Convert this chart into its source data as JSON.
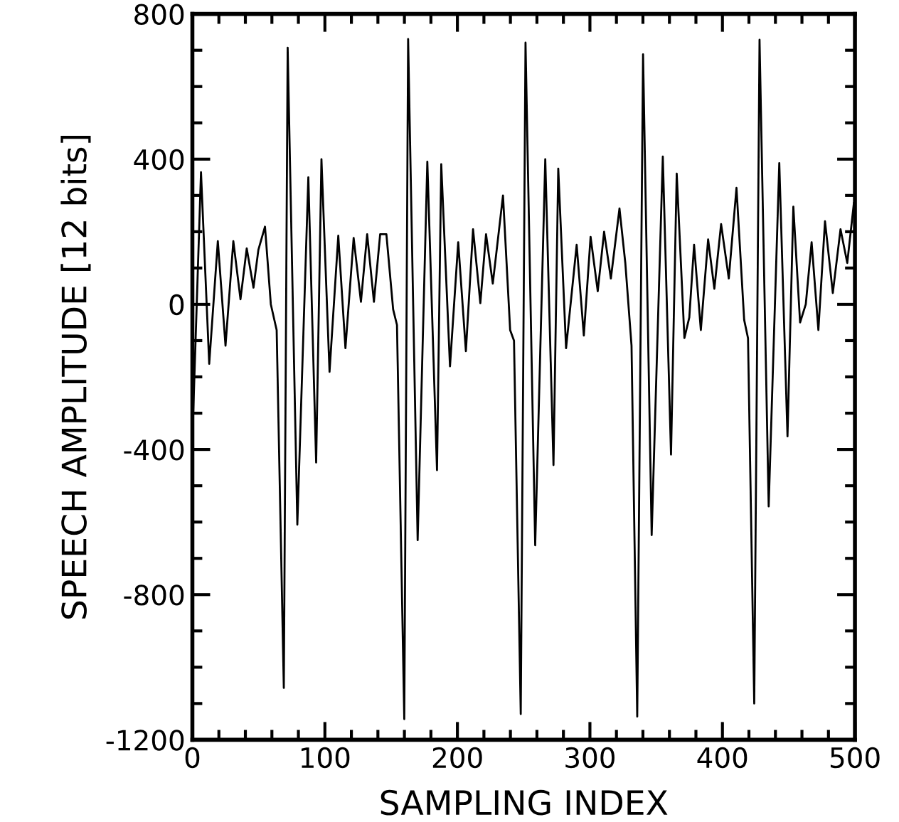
{
  "chart_data": {
    "type": "line",
    "xlabel": "SAMPLING INDEX",
    "ylabel": "SPEECH AMPLITUDE [12 bits]",
    "xlim": [
      0,
      500
    ],
    "ylim": [
      -1200,
      800
    ],
    "xticks": [
      0,
      {
        "value": 20,
        "label": null
      },
      {
        "value": 40,
        "label": null
      },
      {
        "value": 60,
        "label": null
      },
      {
        "value": 80,
        "label": null
      },
      100,
      {
        "value": 120,
        "label": null
      },
      {
        "value": 140,
        "label": null
      },
      {
        "value": 160,
        "label": null
      },
      {
        "value": 180,
        "label": null
      },
      200,
      {
        "value": 220,
        "label": null
      },
      {
        "value": 240,
        "label": null
      },
      {
        "value": 260,
        "label": null
      },
      {
        "value": 280,
        "label": null
      },
      300,
      {
        "value": 320,
        "label": null
      },
      {
        "value": 340,
        "label": null
      },
      {
        "value": 360,
        "label": null
      },
      {
        "value": 380,
        "label": null
      },
      400,
      {
        "value": 420,
        "label": null
      },
      {
        "value": 440,
        "label": null
      },
      {
        "value": 460,
        "label": null
      },
      {
        "value": 480,
        "label": null
      },
      500
    ],
    "yticks": [
      -1200,
      {
        "value": -1100,
        "label": null
      },
      {
        "value": -1000,
        "label": null
      },
      {
        "value": -900,
        "label": null
      },
      -800,
      {
        "value": -700,
        "label": null
      },
      {
        "value": -600,
        "label": null
      },
      {
        "value": -500,
        "label": null
      },
      -400,
      {
        "value": -300,
        "label": null
      },
      {
        "value": -200,
        "label": null
      },
      {
        "value": -100,
        "label": null
      },
      0,
      {
        "value": 100,
        "label": null
      },
      {
        "value": 200,
        "label": null
      },
      {
        "value": 300,
        "label": null
      },
      400,
      {
        "value": 500,
        "label": null
      },
      {
        "value": 600,
        "label": null
      },
      {
        "value": 700,
        "label": null
      },
      800
    ],
    "grid": false,
    "legend": false,
    "marker": "none",
    "line_style": "solid",
    "series": [
      {
        "color": "#000000",
        "x": [
          0,
          6.5,
          12.7,
          19.2,
          25,
          30.9,
          36.3,
          41,
          46.1,
          49.8,
          54.8,
          59.2,
          63.6,
          69,
          71.9,
          79.2,
          87.5,
          93.4,
          97.4,
          103.5,
          110.1,
          115.5,
          121.7,
          127.2,
          131.9,
          137,
          141.7,
          146.4,
          151.5,
          154.4,
          159.9,
          162.8,
          170,
          177.3,
          184.6,
          187.8,
          194.4,
          200.6,
          206.4,
          211.8,
          217.3,
          221.6,
          226.7,
          234.4,
          239.8,
          242.7,
          247.8,
          251.4,
          258.7,
          266.3,
          272.5,
          276.1,
          282,
          290,
          295.4,
          300.5,
          305.9,
          310.7,
          315.8,
          322.3,
          326.7,
          331.4,
          335.7,
          340.1,
          346.6,
          355,
          361.2,
          365.5,
          371.3,
          375,
          378.6,
          383.7,
          389.2,
          393.9,
          399,
          404.8,
          410.6,
          416.4,
          419.3,
          424,
          428,
          434.9,
          442.9,
          449.1,
          453.5,
          458.6,
          462.9,
          467.3,
          472.4,
          477.4,
          483.3,
          489.1,
          494.2,
          499.2
        ],
        "values": [
          -371,
          364,
          -164,
          174,
          -114,
          174,
          14,
          154,
          46,
          150,
          214,
          0,
          -71,
          -1057,
          707,
          -607,
          350,
          -436,
          400,
          -186,
          189,
          -121,
          183,
          7,
          193,
          7,
          193,
          193,
          -14,
          -57,
          -1143,
          731,
          -650,
          393,
          -457,
          386,
          -171,
          171,
          -129,
          207,
          3,
          193,
          57,
          300,
          -71,
          -100,
          -1129,
          721,
          -664,
          400,
          -443,
          374,
          -121,
          164,
          -86,
          186,
          36,
          200,
          71,
          264,
          114,
          -114,
          -1136,
          689,
          -636,
          407,
          -414,
          360,
          -93,
          -36,
          164,
          -71,
          179,
          43,
          221,
          71,
          321,
          -43,
          -93,
          -1100,
          729,
          -557,
          389,
          -364,
          269,
          -50,
          0,
          171,
          -71,
          229,
          31,
          207,
          114,
          279
        ]
      }
    ]
  }
}
